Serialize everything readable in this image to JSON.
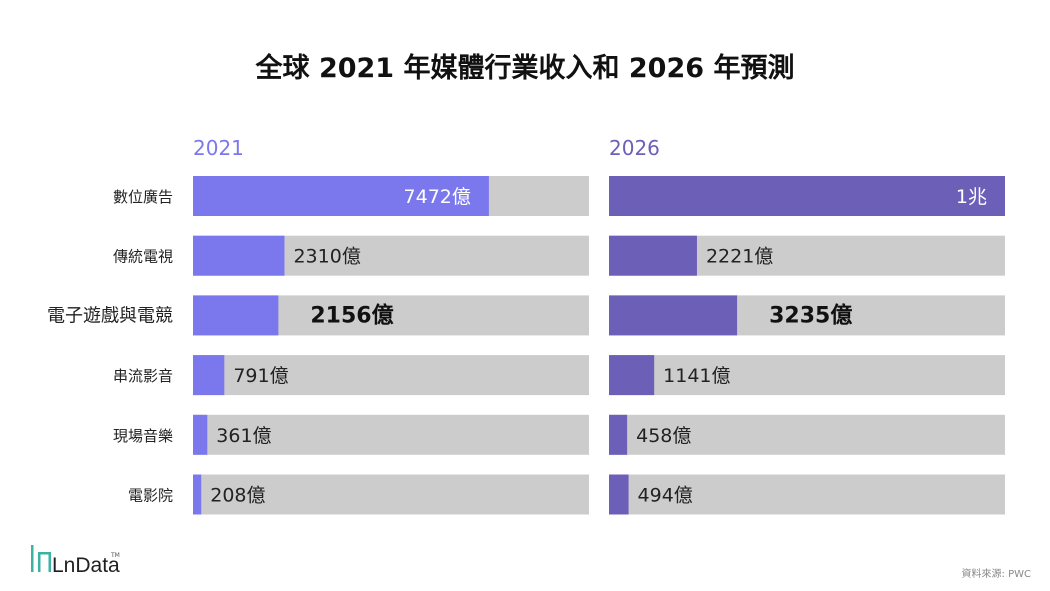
{
  "chart_data": {
    "type": "bar",
    "title": "全球 2021 年媒體行業收入和 2026 年預測",
    "categories": [
      "數位廣告",
      "傳統電視",
      "電子遊戲與電競",
      "串流影音",
      "現場音樂",
      "電影院"
    ],
    "series": [
      {
        "name": "2021",
        "color": "#7b78ee",
        "values": [
          7472,
          2310,
          2156,
          791,
          361,
          208
        ],
        "labels": [
          "7472億",
          "2310億",
          "2156億",
          "791億",
          "361億",
          "208億"
        ]
      },
      {
        "name": "2026",
        "color": "#6c5fb8",
        "values": [
          10000,
          2221,
          3235,
          1141,
          458,
          494
        ],
        "labels": [
          "1兆",
          "2221億",
          "3235億",
          "1141億",
          "458億",
          "494億"
        ]
      }
    ],
    "unit": "億",
    "xlim": [
      0,
      10000
    ],
    "track_color": "#cccccc",
    "highlight_category": "電子遊戲與電競",
    "grid": false,
    "legend": "none"
  },
  "source": "資料來源: PWC",
  "logo": {
    "text": "LnData",
    "tm": "TM",
    "color": "#3bb3a3"
  }
}
